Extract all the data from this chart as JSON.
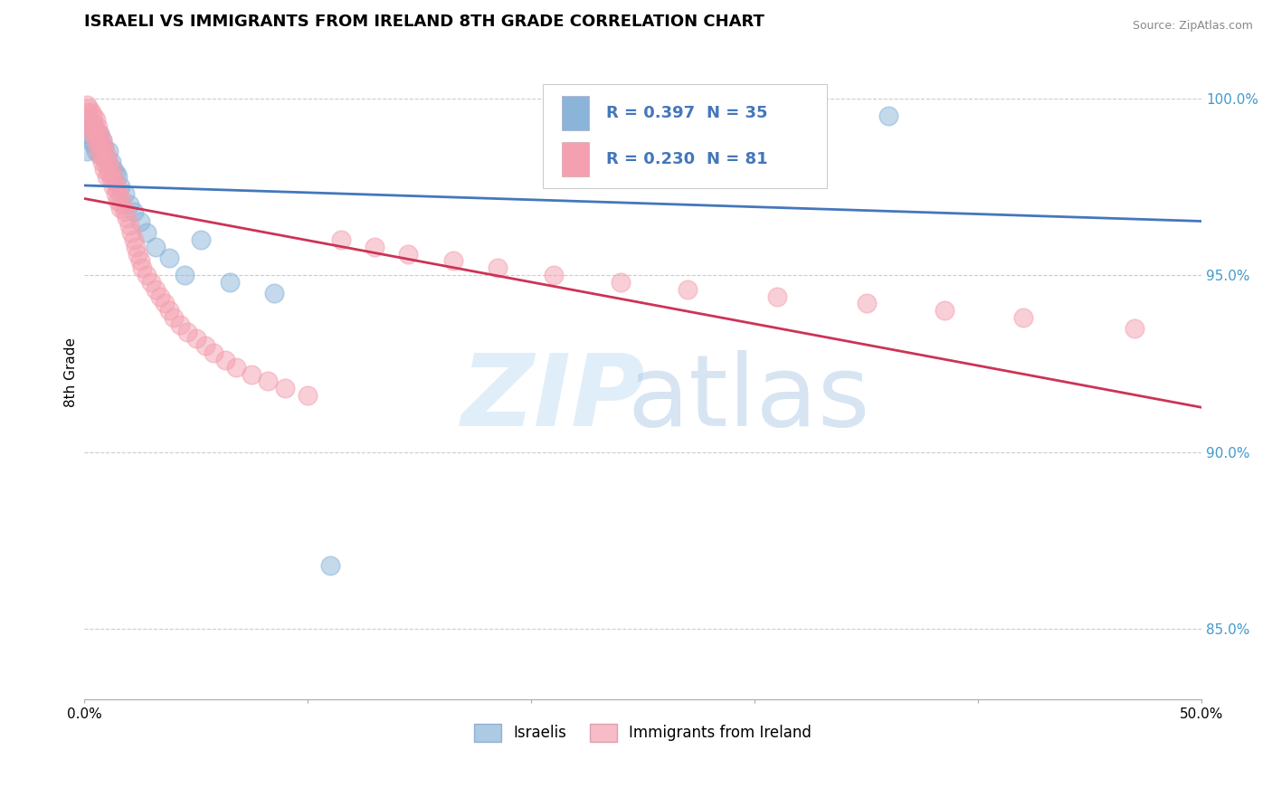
{
  "title": "ISRAELI VS IMMIGRANTS FROM IRELAND 8TH GRADE CORRELATION CHART",
  "source": "Source: ZipAtlas.com",
  "xlabel": "",
  "ylabel": "8th Grade",
  "xlim": [
    0.0,
    0.5
  ],
  "ylim": [
    0.83,
    1.015
  ],
  "xticks": [
    0.0,
    0.1,
    0.2,
    0.3,
    0.4,
    0.5
  ],
  "xticklabels": [
    "0.0%",
    "",
    "",
    "",
    "",
    "50.0%"
  ],
  "yticks": [
    0.85,
    0.9,
    0.95,
    1.0
  ],
  "yticklabels": [
    "85.0%",
    "90.0%",
    "95.0%",
    "100.0%"
  ],
  "legend_labels": [
    "Israelis",
    "Immigrants from Ireland"
  ],
  "blue_r": "R = 0.397",
  "blue_n": "N = 35",
  "pink_r": "R = 0.230",
  "pink_n": "N = 81",
  "blue_color": "#8ab4d8",
  "pink_color": "#f4a0b0",
  "blue_line_color": "#4477bb",
  "pink_line_color": "#cc3355",
  "grid_color": "#cccccc",
  "israelis_x": [
    0.001,
    0.002,
    0.003,
    0.003,
    0.004,
    0.004,
    0.005,
    0.005,
    0.006,
    0.006,
    0.007,
    0.007,
    0.008,
    0.009,
    0.01,
    0.011,
    0.012,
    0.013,
    0.014,
    0.015,
    0.016,
    0.018,
    0.02,
    0.022,
    0.025,
    0.028,
    0.032,
    0.038,
    0.045,
    0.052,
    0.065,
    0.085,
    0.11,
    0.32,
    0.36
  ],
  "israelis_y": [
    0.985,
    0.99,
    0.988,
    0.992,
    0.987,
    0.993,
    0.985,
    0.991,
    0.989,
    0.986,
    0.984,
    0.99,
    0.988,
    0.986,
    0.983,
    0.985,
    0.982,
    0.98,
    0.979,
    0.978,
    0.975,
    0.973,
    0.97,
    0.968,
    0.965,
    0.962,
    0.958,
    0.955,
    0.95,
    0.96,
    0.948,
    0.945,
    0.868,
    0.996,
    0.995
  ],
  "ireland_x": [
    0.001,
    0.001,
    0.002,
    0.002,
    0.003,
    0.003,
    0.003,
    0.004,
    0.004,
    0.004,
    0.005,
    0.005,
    0.005,
    0.006,
    0.006,
    0.006,
    0.007,
    0.007,
    0.007,
    0.008,
    0.008,
    0.008,
    0.009,
    0.009,
    0.009,
    0.01,
    0.01,
    0.01,
    0.011,
    0.011,
    0.012,
    0.012,
    0.013,
    0.013,
    0.014,
    0.014,
    0.015,
    0.015,
    0.016,
    0.016,
    0.017,
    0.018,
    0.019,
    0.02,
    0.021,
    0.022,
    0.023,
    0.024,
    0.025,
    0.026,
    0.028,
    0.03,
    0.032,
    0.034,
    0.036,
    0.038,
    0.04,
    0.043,
    0.046,
    0.05,
    0.054,
    0.058,
    0.063,
    0.068,
    0.075,
    0.082,
    0.09,
    0.1,
    0.115,
    0.13,
    0.145,
    0.165,
    0.185,
    0.21,
    0.24,
    0.27,
    0.31,
    0.35,
    0.385,
    0.42,
    0.47
  ],
  "ireland_y": [
    0.998,
    0.996,
    0.997,
    0.994,
    0.996,
    0.993,
    0.991,
    0.995,
    0.992,
    0.99,
    0.994,
    0.991,
    0.988,
    0.992,
    0.989,
    0.986,
    0.99,
    0.987,
    0.984,
    0.988,
    0.985,
    0.982,
    0.986,
    0.983,
    0.98,
    0.984,
    0.981,
    0.978,
    0.982,
    0.979,
    0.98,
    0.977,
    0.978,
    0.975,
    0.976,
    0.973,
    0.974,
    0.971,
    0.972,
    0.969,
    0.97,
    0.968,
    0.966,
    0.964,
    0.962,
    0.96,
    0.958,
    0.956,
    0.954,
    0.952,
    0.95,
    0.948,
    0.946,
    0.944,
    0.942,
    0.94,
    0.938,
    0.936,
    0.934,
    0.932,
    0.93,
    0.928,
    0.926,
    0.924,
    0.922,
    0.92,
    0.918,
    0.916,
    0.96,
    0.958,
    0.956,
    0.954,
    0.952,
    0.95,
    0.948,
    0.946,
    0.944,
    0.942,
    0.94,
    0.938,
    0.935
  ]
}
